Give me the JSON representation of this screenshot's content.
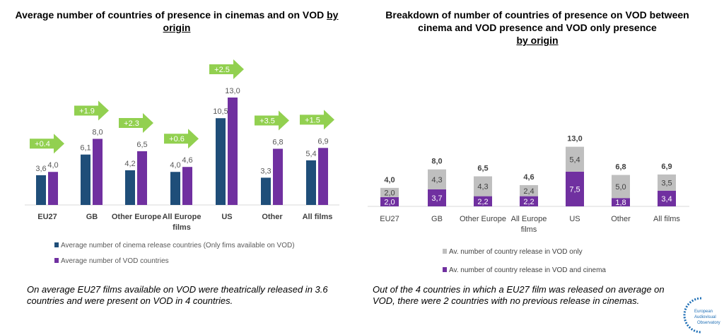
{
  "chart_data": [
    {
      "type": "bar",
      "title": "Average number of countries of presence in cinemas and on VOD",
      "title_underlined": "by origin",
      "categories": [
        "EU27",
        "GB",
        "Other Europe",
        "All Europe films",
        "US",
        "Other",
        "All films"
      ],
      "series": [
        {
          "name": "Average number of cinema release countries (Only fims available on VOD)",
          "color": "#1f4e79",
          "values": [
            3.6,
            6.1,
            4.2,
            4.0,
            10.5,
            3.3,
            5.4
          ],
          "labels": [
            "3,6",
            "6,1",
            "4,2",
            "4,0",
            "10,5",
            "3,3",
            "5,4"
          ]
        },
        {
          "name": "Average number  of VOD countries",
          "color": "#7030a0",
          "values": [
            4.0,
            8.0,
            6.5,
            4.6,
            13.0,
            6.8,
            6.9
          ],
          "labels": [
            "4,0",
            "8,0",
            "6,5",
            "4,6",
            "13,0",
            "6,8",
            "6,9"
          ]
        }
      ],
      "annotations": [
        "+0.4",
        "+1.9",
        "+2.3",
        "+0.6",
        "+2.5",
        "+3.5",
        "+1.5"
      ],
      "annotation_color": "#92d050",
      "ylim": [
        0,
        13
      ],
      "grid": false,
      "legend_position": "bottom",
      "note": "On average EU27 films available on VOD were theatrically released in 3.6 countries and were present on VOD in 4 countries."
    },
    {
      "type": "bar",
      "stacked": true,
      "title": "Breakdown of number of countries of presence on VOD between cinema and VOD presence and VOD only presence",
      "title_underlined": "by origin",
      "categories": [
        "EU27",
        "GB",
        "Other Europe",
        "All Europe films",
        "US",
        "Other",
        "All films"
      ],
      "series": [
        {
          "name": "Av. number of country release in VOD and cinema",
          "color": "#7030a0",
          "values": [
            2.0,
            3.7,
            2.2,
            2.2,
            7.5,
            1.8,
            3.4
          ],
          "labels": [
            "2,0",
            "3,7",
            "2,2",
            "2,2",
            "7,5",
            "1,8",
            "3,4"
          ]
        },
        {
          "name": "Av. number of country release in VOD only",
          "color": "#bfbfbf",
          "values": [
            2.0,
            4.3,
            4.3,
            2.4,
            5.4,
            5.0,
            3.5
          ],
          "labels": [
            "2,0",
            "4,3",
            "4,3",
            "2,4",
            "5,4",
            "5,0",
            "3,5"
          ]
        }
      ],
      "totals": [
        "4,0",
        "8,0",
        "6,5",
        "4,6",
        "13,0",
        "6,8",
        "6,9"
      ],
      "ylim": [
        0,
        13
      ],
      "grid": false,
      "legend_position": "bottom",
      "note": "Out of the 4 countries in which a EU27 film was released on average on VOD, there were 2 countries with no previous release in cinemas."
    }
  ],
  "logo": {
    "text": "European Audiovisual Observatory",
    "color": "#1f6fb5"
  }
}
